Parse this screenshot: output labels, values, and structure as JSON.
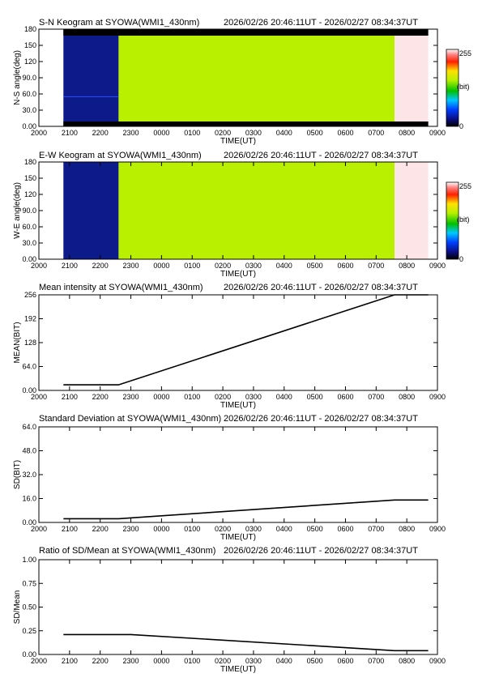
{
  "x_ticks": [
    "2000",
    "2100",
    "2200",
    "2300",
    "0000",
    "0100",
    "0200",
    "0300",
    "0400",
    "0500",
    "0600",
    "0700",
    "0800",
    "0900"
  ],
  "time_range": "2026/02/26 20:46:11UT - 2026/02/27 08:34:37UT",
  "xlabel": "TIME(UT)",
  "colors": {
    "no_data": "#ffffff",
    "dark": "#0d1a8a",
    "green": "#b8f000",
    "pink": "#fde4e6",
    "bar": "#000000"
  },
  "colorbar": {
    "max_label": "255",
    "unit_label": "(bit)",
    "min_label": "0"
  },
  "chart_data": [
    {
      "type": "heatmap",
      "title": "S-N Keogram at SYOWA(WMI1_430nm)",
      "ylabel": "N-S angle(deg)",
      "yticks": [
        "0.00",
        "30.0",
        "60.0",
        "90.0",
        "120",
        "150",
        "180"
      ],
      "ylim": [
        0,
        180
      ],
      "xlim": [
        20.0,
        33.0
      ],
      "segments": [
        {
          "x0": 20.0,
          "x1": 20.8,
          "value": "no_data"
        },
        {
          "x0": 20.8,
          "x1": 22.6,
          "value": "dark"
        },
        {
          "x0": 22.6,
          "x1": 31.6,
          "value": "green"
        },
        {
          "x0": 31.6,
          "x1": 32.7,
          "value": "pink"
        }
      ]
    },
    {
      "type": "heatmap",
      "title": "E-W Keogram at SYOWA(WMI1_430nm)",
      "ylabel": "W-E angle(deg)",
      "yticks": [
        "0.00",
        "30.0",
        "60.0",
        "90.0",
        "120",
        "150",
        "180"
      ],
      "ylim": [
        0,
        180
      ],
      "xlim": [
        20.0,
        33.0
      ],
      "segments": [
        {
          "x0": 20.0,
          "x1": 20.8,
          "value": "no_data"
        },
        {
          "x0": 20.8,
          "x1": 22.6,
          "value": "dark"
        },
        {
          "x0": 22.6,
          "x1": 31.6,
          "value": "green"
        },
        {
          "x0": 31.6,
          "x1": 32.7,
          "value": "pink"
        }
      ]
    },
    {
      "type": "line",
      "title": "Mean intensity at SYOWA(WMI1_430nm)",
      "ylabel": "MEAN(BIT)",
      "yticks": [
        "0.00",
        "64.0",
        "128",
        "192",
        "256"
      ],
      "ylim": [
        0,
        256
      ],
      "xlim": [
        20.0,
        33.0
      ],
      "x": [
        20.8,
        22.6,
        31.6,
        32.7
      ],
      "y": [
        15,
        15,
        256,
        256
      ]
    },
    {
      "type": "line",
      "title": "Standard Deviation at SYOWA(WMI1_430nm)",
      "ylabel": "SD(BIT)",
      "yticks": [
        "0.00",
        "16.0",
        "32.0",
        "48.0",
        "64.0"
      ],
      "ylim": [
        0,
        64
      ],
      "xlim": [
        20.0,
        33.0
      ],
      "x": [
        20.8,
        22.6,
        31.6,
        32.7
      ],
      "y": [
        2.5,
        2.5,
        15,
        15
      ]
    },
    {
      "type": "line",
      "title": "Ratio of SD/Mean at SYOWA(WMI1_430nm)",
      "ylabel": "SD/Mean",
      "yticks": [
        "0.00",
        "0.25",
        "0.50",
        "0.75",
        "1.00"
      ],
      "ylim": [
        0,
        1.0
      ],
      "xlim": [
        20.0,
        33.0
      ],
      "x": [
        20.8,
        23.0,
        31.6,
        32.7
      ],
      "y": [
        0.21,
        0.21,
        0.04,
        0.04
      ]
    }
  ]
}
